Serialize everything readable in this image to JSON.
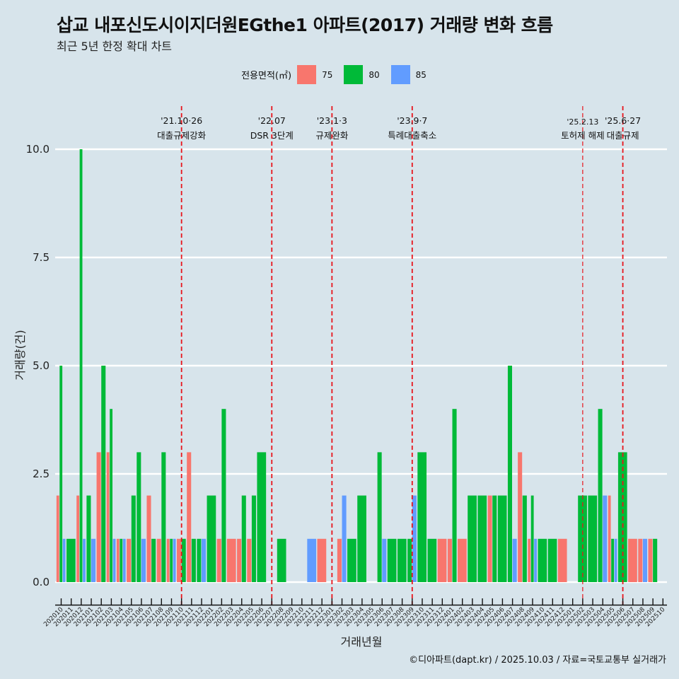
{
  "header": {
    "title": "삽교 내포신도시이지더원EGthe1 아파트(2017) 거래량 변화 흐름",
    "subtitle": "최근 5년 한정 확대 차트"
  },
  "legend": {
    "title": "전용면적(㎡)",
    "items": [
      {
        "label": "75",
        "color": "#f8766d"
      },
      {
        "label": "80",
        "color": "#00ba38"
      },
      {
        "label": "85",
        "color": "#619cff"
      }
    ]
  },
  "footer": "©디아파트(dapt.kr) / 2025.10.03 / 자료=국토교통부 실거래가",
  "chart_data": {
    "type": "bar",
    "title": "삽교 내포신도시이지더원EGthe1 아파트(2017) 거래량 변화 흐름",
    "xlabel": "거래년월",
    "ylabel": "거래량(건)",
    "ylim": [
      0,
      10
    ],
    "yticks": [
      "0.0",
      "2.5",
      "5.0",
      "7.5",
      "10.0"
    ],
    "grid": "horizontal",
    "legend_position": "top",
    "categories": [
      "202010",
      "202011",
      "202012",
      "202101",
      "202102",
      "202103",
      "202104",
      "202105",
      "202106",
      "202107",
      "202108",
      "202109",
      "202110",
      "202111",
      "202112",
      "202201",
      "202202",
      "202203",
      "202204",
      "202205",
      "202206",
      "202207",
      "202208",
      "202209",
      "202210",
      "202211",
      "202212",
      "202301",
      "202302",
      "202303",
      "202304",
      "202305",
      "202306",
      "202307",
      "202308",
      "202309",
      "202310",
      "202311",
      "202312",
      "202401",
      "202402",
      "202403",
      "202404",
      "202405",
      "202406",
      "202407",
      "202408",
      "202409",
      "202410",
      "202411",
      "202412",
      "202501",
      "202502",
      "202503",
      "202504",
      "202505",
      "202506",
      "202507",
      "202508",
      "202509",
      "202510"
    ],
    "series": [
      {
        "name": "75",
        "color": "#f8766d",
        "values": [
          2,
          0,
          2,
          0,
          3,
          3,
          1,
          1,
          0,
          2,
          1,
          1,
          1,
          3,
          0,
          0,
          1,
          1,
          1,
          1,
          0,
          0,
          0,
          0,
          0,
          0,
          1,
          0,
          1,
          0,
          0,
          0,
          0,
          0,
          0,
          0,
          0,
          0,
          1,
          1,
          1,
          0,
          0,
          2,
          0,
          0,
          3,
          1,
          0,
          0,
          1,
          0,
          0,
          0,
          0,
          2,
          0,
          1,
          1,
          1,
          0
        ]
      },
      {
        "name": "80",
        "color": "#00ba38",
        "values": [
          5,
          1,
          10,
          2,
          5,
          4,
          1,
          2,
          3,
          1,
          3,
          1,
          1,
          1,
          1,
          2,
          4,
          0,
          2,
          2,
          3,
          0,
          1,
          0,
          0,
          0,
          0,
          0,
          0,
          1,
          2,
          0,
          3,
          1,
          1,
          1,
          3,
          1,
          0,
          4,
          0,
          2,
          2,
          2,
          2,
          5,
          2,
          2,
          1,
          1,
          0,
          0,
          2,
          2,
          4,
          1,
          3,
          0,
          0,
          1,
          0
        ]
      },
      {
        "name": "85",
        "color": "#619cff",
        "values": [
          1,
          0,
          1,
          1,
          0,
          1,
          1,
          0,
          1,
          0,
          0,
          1,
          0,
          0,
          1,
          0,
          0,
          0,
          0,
          0,
          0,
          0,
          0,
          0,
          0,
          1,
          0,
          0,
          2,
          0,
          0,
          0,
          1,
          0,
          0,
          2,
          0,
          0,
          0,
          0,
          0,
          0,
          0,
          0,
          0,
          1,
          0,
          1,
          0,
          0,
          0,
          0,
          0,
          0,
          2,
          1,
          0,
          0,
          1,
          0,
          0
        ]
      }
    ],
    "annotations": [
      {
        "x": "202110",
        "date": "'21.10·26",
        "label": "대출규제강화"
      },
      {
        "x": "202207",
        "date": "'22.07",
        "label": "DSR 3단계"
      },
      {
        "x": "202301",
        "date": "'23.1·3",
        "label": "규제완화"
      },
      {
        "x": "202309",
        "date": "'23.9·7",
        "label": "특례대출축소"
      },
      {
        "x": "202502",
        "date": "'25.2.13",
        "label": "토허제 해제"
      },
      {
        "x": "202506",
        "date": "'25.6·27",
        "label": "대출규제"
      }
    ]
  }
}
